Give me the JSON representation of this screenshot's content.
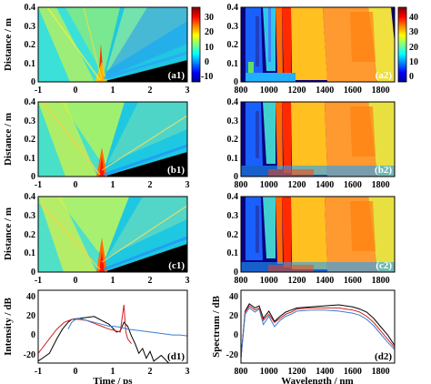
{
  "chart_data": [
    {
      "panel": "a1",
      "type": "heatmap",
      "ylabel": "Distance / m",
      "xticks": [
        "-1",
        "0",
        "1",
        "2",
        "3"
      ],
      "yticks": [
        "0",
        "0.1",
        "0.2",
        "0.3",
        "0.4"
      ],
      "xlim": [
        -1,
        3
      ],
      "ylim": [
        0,
        0.4
      ],
      "label": "(a1)",
      "colorbar": {
        "ticks": [
          "30",
          "20",
          "10",
          "0",
          "-10"
        ],
        "range": [
          -15,
          35
        ]
      }
    },
    {
      "panel": "a2",
      "type": "heatmap",
      "xticks": [
        "800",
        "1000",
        "1200",
        "1400",
        "1600",
        "1800"
      ],
      "yticks": [
        "0",
        "0.1",
        "0.2",
        "0.3",
        "0.4"
      ],
      "xlim": [
        800,
        1900
      ],
      "ylim": [
        0,
        0.4
      ],
      "label": "(a2)",
      "colorbar": {
        "ticks": [
          "40",
          "30",
          "20",
          "10",
          "0"
        ],
        "range": [
          -5,
          45
        ]
      }
    },
    {
      "panel": "b1",
      "type": "heatmap",
      "ylabel": "Distance / m",
      "xticks": [
        "-1",
        "0",
        "1",
        "2",
        "3"
      ],
      "yticks": [
        "0",
        "0.1",
        "0.2",
        "0.3",
        "0.4"
      ],
      "xlim": [
        -1,
        3
      ],
      "ylim": [
        0,
        0.4
      ],
      "label": "(b1)"
    },
    {
      "panel": "b2",
      "type": "heatmap",
      "xticks": [
        "800",
        "1000",
        "1200",
        "1400",
        "1600",
        "1800"
      ],
      "yticks": [
        "0",
        "0.1",
        "0.2",
        "0.3",
        "0.4"
      ],
      "xlim": [
        800,
        1900
      ],
      "ylim": [
        0,
        0.4
      ],
      "label": "(b2)"
    },
    {
      "panel": "c1",
      "type": "heatmap",
      "ylabel": "Distance / m",
      "xticks": [
        "-1",
        "0",
        "1",
        "2",
        "3"
      ],
      "yticks": [
        "0",
        "0.1",
        "0.2",
        "0.3",
        "0.4"
      ],
      "xlim": [
        -1,
        3
      ],
      "ylim": [
        0,
        0.4
      ],
      "label": "(c1)"
    },
    {
      "panel": "c2",
      "type": "heatmap",
      "xticks": [
        "800",
        "1000",
        "1200",
        "1400",
        "1600",
        "1800"
      ],
      "yticks": [
        "0",
        "0.1",
        "0.2",
        "0.3",
        "0.4"
      ],
      "xlim": [
        800,
        1900
      ],
      "ylim": [
        0,
        0.4
      ],
      "label": "(c2)"
    },
    {
      "panel": "d1",
      "type": "line",
      "xlabel": "Time / ps",
      "ylabel": "Intensity / dB",
      "xticks": [
        "-1",
        "0",
        "1",
        "2",
        "3"
      ],
      "yticks": [
        "40",
        "20",
        "0",
        "-20"
      ],
      "xlim": [
        -1,
        3
      ],
      "ylim": [
        -30,
        45
      ],
      "label": "(d1)",
      "series": [
        {
          "color": "#000000",
          "x": [
            -1,
            -0.7,
            -0.5,
            -0.35,
            -0.2,
            -0.1,
            0.1,
            0.3,
            0.5,
            0.7,
            0.9,
            1.0,
            1.1,
            1.2,
            1.3,
            1.4,
            1.5,
            1.6,
            1.7,
            1.8,
            1.9,
            2.0,
            2.1,
            2.3,
            2.5,
            3
          ],
          "y": [
            -28,
            -20,
            -5,
            5,
            12,
            15,
            16,
            17,
            18,
            14,
            10,
            6,
            2,
            3,
            12,
            8,
            -2,
            -10,
            -20,
            -15,
            -25,
            -18,
            -28,
            -22,
            -30,
            -30
          ]
        },
        {
          "color": "#d42020",
          "x": [
            -1,
            -0.9,
            -0.7,
            -0.5,
            -0.3,
            -0.1,
            0.1,
            0.3,
            0.5,
            0.7,
            0.9,
            1.0,
            1.1,
            1.2,
            1.3,
            1.35,
            1.4,
            1.5
          ],
          "y": [
            -20,
            -15,
            -5,
            5,
            12,
            15,
            15,
            14,
            11,
            8,
            5,
            4,
            3,
            2,
            30,
            2,
            -5,
            -10
          ]
        },
        {
          "color": "#3a7fd0",
          "x": [
            -0.2,
            -0.1,
            0,
            0.1,
            0.3,
            0.5,
            0.7,
            0.9,
            1.0,
            1.2,
            1.4,
            1.6,
            1.8,
            2.0,
            2.2,
            2.4,
            2.6,
            2.8,
            3
          ],
          "y": [
            5,
            12,
            15,
            16,
            14,
            12,
            10,
            8,
            8,
            7,
            5,
            4,
            3,
            2,
            1,
            0,
            -1,
            -1,
            -2
          ]
        }
      ]
    },
    {
      "panel": "d2",
      "type": "line",
      "xlabel": "Wavelength / nm",
      "ylabel": "Spectrum / dB",
      "xticks": [
        "800",
        "1000",
        "1200",
        "1400",
        "1600",
        "1800"
      ],
      "yticks": [
        "40",
        "20",
        "0",
        "-20"
      ],
      "xlim": [
        800,
        1900
      ],
      "ylim": [
        -25,
        45
      ],
      "label": "(d2)",
      "series": [
        {
          "color": "#000000",
          "x": [
            800,
            830,
            860,
            900,
            930,
            960,
            1000,
            1040,
            1080,
            1120,
            1160,
            1200,
            1300,
            1400,
            1500,
            1550,
            1600,
            1650,
            1700,
            1750,
            1800,
            1850,
            1900
          ],
          "y": [
            -20,
            25,
            32,
            28,
            30,
            18,
            25,
            15,
            20,
            24,
            26,
            28,
            29,
            30,
            31,
            30,
            29,
            27,
            24,
            18,
            10,
            2,
            -8
          ]
        },
        {
          "color": "#d42020",
          "x": [
            800,
            830,
            860,
            900,
            930,
            960,
            1000,
            1040,
            1080,
            1120,
            1160,
            1200,
            1300,
            1400,
            1500,
            1550,
            1600,
            1650,
            1700,
            1750,
            1800,
            1850,
            1900
          ],
          "y": [
            -20,
            24,
            30,
            26,
            28,
            16,
            22,
            14,
            18,
            22,
            24,
            27,
            28,
            28,
            28,
            27,
            26,
            24,
            20,
            14,
            6,
            -2,
            -10
          ]
        },
        {
          "color": "#3a7fd0",
          "x": [
            800,
            830,
            860,
            900,
            930,
            960,
            1000,
            1040,
            1080,
            1120,
            1160,
            1200,
            1300,
            1400,
            1500,
            1550,
            1600,
            1650,
            1700,
            1750,
            1800,
            1850,
            1900
          ],
          "y": [
            -20,
            22,
            28,
            24,
            27,
            12,
            20,
            10,
            16,
            20,
            22,
            25,
            26,
            26,
            25,
            24,
            23,
            21,
            17,
            11,
            3,
            -5,
            -12
          ]
        }
      ]
    }
  ]
}
